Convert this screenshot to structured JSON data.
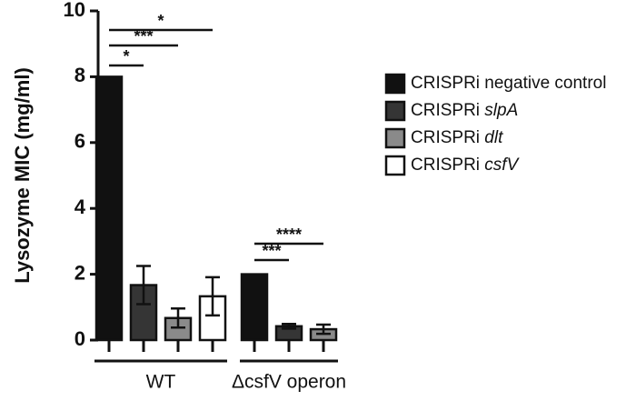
{
  "chart_data": {
    "type": "bar",
    "y_label": "Lysozyme MIC (mg/ml)",
    "categories": [
      "WT",
      "ΔcsfV operon"
    ],
    "series": [
      {
        "name": "CRISPRi negative control",
        "color": "#111111",
        "values": [
          8,
          2
        ],
        "errors": [
          0,
          0
        ]
      },
      {
        "name": "CRISPRi slpA",
        "color": "#353535",
        "values": [
          1.67,
          0.42
        ],
        "errors": [
          0.58,
          0.07
        ]
      },
      {
        "name": "CRISPRi dlt",
        "color": "#8a8a8a",
        "values": [
          0.67,
          0.33
        ],
        "errors": [
          0.29,
          0.14
        ]
      },
      {
        "name": "CRISPRi csfV",
        "color": "#ffffff",
        "values": [
          1.33,
          null
        ],
        "errors": [
          0.58,
          null
        ]
      }
    ],
    "annotations": [
      "*",
      "***",
      "*",
      "***",
      "****"
    ],
    "ylim": [
      0,
      10
    ],
    "yticks": [
      0,
      2,
      4,
      6,
      8,
      10
    ]
  }
}
